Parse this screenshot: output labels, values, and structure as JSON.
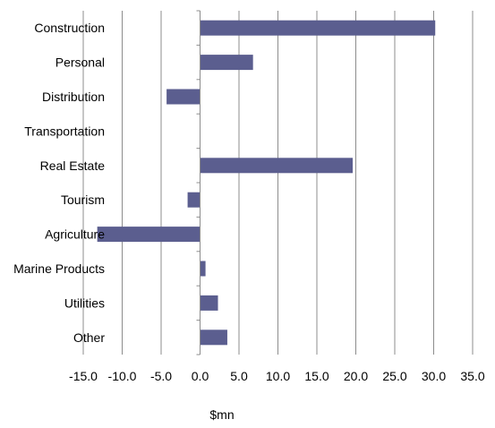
{
  "chart_data": {
    "type": "bar",
    "orientation": "horizontal",
    "categories": [
      "Construction",
      "Personal",
      "Distribution",
      "Transportation",
      "Real Estate",
      "Tourism",
      "Agriculture",
      "Marine Products",
      "Utilities",
      "Other"
    ],
    "values": [
      30.2,
      6.8,
      -4.3,
      0.0,
      19.6,
      -1.6,
      -13.2,
      0.7,
      2.3,
      3.5
    ],
    "xlabel": "$mn",
    "ylabel": "",
    "xlim": [
      -15.0,
      35.0
    ],
    "xticks": [
      "-15.0",
      "-10.0",
      "-5.0",
      "0.0",
      "5.0",
      "10.0",
      "15.0",
      "20.0",
      "25.0",
      "30.0",
      "35.0"
    ],
    "grid": "vertical",
    "bar_color": "#5b5e8f",
    "gridline_color": "#8c8c8c"
  }
}
